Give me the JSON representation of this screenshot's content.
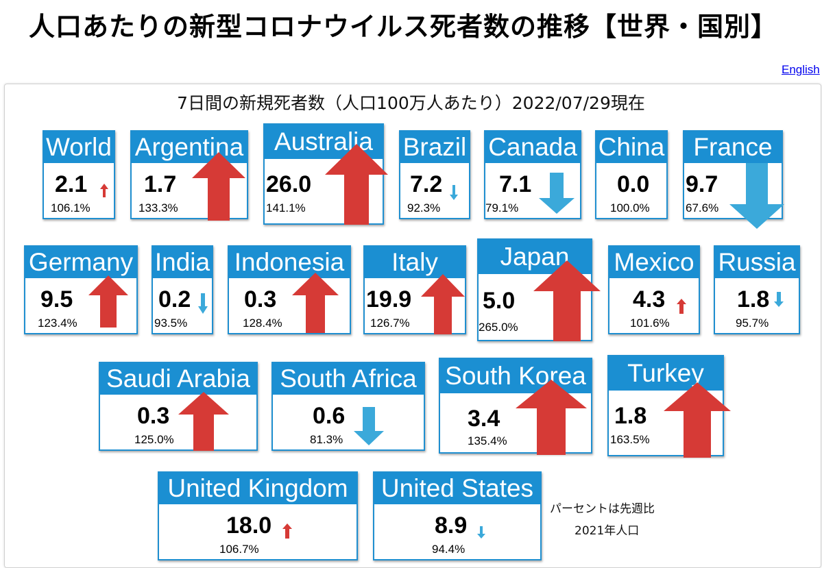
{
  "page": {
    "title": "人口あたりの新型コロナウイルス死者数の推移【世界・国別】",
    "english_link": "English",
    "subtitle": "7日間の新規死者数（人口100万人あたり）2022/07/29現在"
  },
  "colors": {
    "header_blue": "#1b8fd2",
    "arrow_up_red": "#d63a36",
    "arrow_down_blue": "#3ba9da"
  },
  "icons": {
    "up": "arrow-up-icon",
    "down": "arrow-down-icon"
  },
  "cards": [
    {
      "name": "World",
      "value": "2.1",
      "percent": "106.1%",
      "trend": "up"
    },
    {
      "name": "Argentina",
      "value": "1.7",
      "percent": "133.3%",
      "trend": "up"
    },
    {
      "name": "Australia",
      "value": "26.0",
      "percent": "141.1%",
      "trend": "up"
    },
    {
      "name": "Brazil",
      "value": "7.2",
      "percent": "92.3%",
      "trend": "down"
    },
    {
      "name": "Canada",
      "value": "7.1",
      "percent": "79.1%",
      "trend": "down"
    },
    {
      "name": "China",
      "value": "0.0",
      "percent": "100.0%",
      "trend": "none"
    },
    {
      "name": "France",
      "value": "9.7",
      "percent": "67.6%",
      "trend": "down"
    },
    {
      "name": "Germany",
      "value": "9.5",
      "percent": "123.4%",
      "trend": "up"
    },
    {
      "name": "India",
      "value": "0.2",
      "percent": "93.5%",
      "trend": "down"
    },
    {
      "name": "Indonesia",
      "value": "0.3",
      "percent": "128.4%",
      "trend": "up"
    },
    {
      "name": "Italy",
      "value": "19.9",
      "percent": "126.7%",
      "trend": "up"
    },
    {
      "name": "Japan",
      "value": "5.0",
      "percent": "265.0%",
      "trend": "up"
    },
    {
      "name": "Mexico",
      "value": "4.3",
      "percent": "101.6%",
      "trend": "up"
    },
    {
      "name": "Russia",
      "value": "1.8",
      "percent": "95.7%",
      "trend": "down"
    },
    {
      "name": "Saudi Arabia",
      "value": "0.3",
      "percent": "125.0%",
      "trend": "up"
    },
    {
      "name": "South Africa",
      "value": "0.6",
      "percent": "81.3%",
      "trend": "down"
    },
    {
      "name": "South Korea",
      "value": "3.4",
      "percent": "135.4%",
      "trend": "up"
    },
    {
      "name": "Turkey",
      "value": "1.8",
      "percent": "163.5%",
      "trend": "up"
    },
    {
      "name": "United Kingdom",
      "value": "18.0",
      "percent": "106.7%",
      "trend": "up"
    },
    {
      "name": "United States",
      "value": "8.9",
      "percent": "94.4%",
      "trend": "down"
    }
  ],
  "notes": {
    "line1": "パーセントは先週比",
    "line2": "2021年人口"
  }
}
